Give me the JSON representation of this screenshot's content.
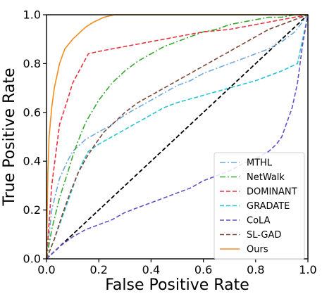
{
  "chart_data": {
    "type": "line",
    "title": "",
    "xlabel": "False Positive Rate",
    "ylabel": "True Positive Rate",
    "xlim": [
      0.0,
      1.0
    ],
    "ylim": [
      0.0,
      1.0
    ],
    "xticks": [
      "0.0",
      "0.2",
      "0.4",
      "0.6",
      "0.8",
      "1.0"
    ],
    "yticks": [
      "0.0",
      "0.2",
      "0.4",
      "0.6",
      "0.8",
      "1.0"
    ],
    "grid": false,
    "legend_position": "lower-right",
    "reference_line": {
      "x": [
        0.0,
        1.0
      ],
      "y": [
        0.0,
        1.0
      ],
      "color": "#000000",
      "style": "dashed"
    },
    "series": [
      {
        "name": "MTHL",
        "color": "#6fa9dc",
        "style": "dashdot",
        "x": [
          0.0,
          0.02,
          0.05,
          0.08,
          0.1,
          0.15,
          0.2,
          0.25,
          0.3,
          0.35,
          0.4,
          0.45,
          0.5,
          0.55,
          0.6,
          0.65,
          0.7,
          0.75,
          0.8,
          0.85,
          0.9,
          0.95,
          1.0
        ],
        "y": [
          0.0,
          0.2,
          0.33,
          0.4,
          0.44,
          0.49,
          0.52,
          0.55,
          0.59,
          0.62,
          0.65,
          0.68,
          0.71,
          0.73,
          0.76,
          0.78,
          0.8,
          0.82,
          0.84,
          0.86,
          0.89,
          0.93,
          1.0
        ]
      },
      {
        "name": "NetWalk",
        "color": "#3aa832",
        "style": "dashdot",
        "x": [
          0.0,
          0.02,
          0.05,
          0.08,
          0.1,
          0.12,
          0.15,
          0.2,
          0.25,
          0.3,
          0.35,
          0.4,
          0.45,
          0.5,
          0.55,
          0.6,
          0.65,
          0.7,
          0.75,
          0.8,
          0.85,
          0.9,
          0.95,
          1.0
        ],
        "y": [
          0.0,
          0.12,
          0.25,
          0.35,
          0.42,
          0.48,
          0.56,
          0.65,
          0.72,
          0.77,
          0.81,
          0.84,
          0.87,
          0.89,
          0.91,
          0.93,
          0.94,
          0.96,
          0.97,
          0.98,
          0.99,
          0.99,
          1.0,
          1.0
        ]
      },
      {
        "name": "DOMINANT",
        "color": "#e8333f",
        "style": "dashed",
        "x": [
          0.0,
          0.02,
          0.05,
          0.08,
          0.1,
          0.12,
          0.14,
          0.16,
          0.2,
          0.3,
          0.4,
          0.5,
          0.6,
          0.7,
          0.8,
          0.9,
          1.0
        ],
        "y": [
          0.0,
          0.3,
          0.55,
          0.65,
          0.72,
          0.76,
          0.8,
          0.84,
          0.85,
          0.87,
          0.89,
          0.91,
          0.93,
          0.94,
          0.96,
          0.98,
          1.0
        ]
      },
      {
        "name": "GRADATE",
        "color": "#27c5d4",
        "style": "dashed",
        "x": [
          0.0,
          0.03,
          0.06,
          0.09,
          0.12,
          0.14,
          0.16,
          0.2,
          0.25,
          0.3,
          0.35,
          0.4,
          0.45,
          0.5,
          0.6,
          0.7,
          0.8,
          0.9,
          0.96,
          0.98,
          1.0
        ],
        "y": [
          0.0,
          0.08,
          0.17,
          0.26,
          0.35,
          0.4,
          0.44,
          0.47,
          0.5,
          0.53,
          0.56,
          0.59,
          0.62,
          0.64,
          0.67,
          0.7,
          0.73,
          0.77,
          0.8,
          0.9,
          1.0
        ]
      },
      {
        "name": "CoLA",
        "color": "#6a4fc4",
        "style": "dashed",
        "x": [
          0.0,
          0.05,
          0.1,
          0.15,
          0.2,
          0.25,
          0.3,
          0.35,
          0.4,
          0.45,
          0.5,
          0.55,
          0.6,
          0.65,
          0.7,
          0.75,
          0.8,
          0.85,
          0.88,
          0.9,
          0.92,
          0.94,
          0.96,
          0.98,
          1.0
        ],
        "y": [
          0.0,
          0.05,
          0.09,
          0.12,
          0.14,
          0.16,
          0.19,
          0.21,
          0.23,
          0.25,
          0.27,
          0.29,
          0.32,
          0.34,
          0.36,
          0.39,
          0.41,
          0.44,
          0.47,
          0.5,
          0.56,
          0.62,
          0.72,
          0.88,
          1.0
        ]
      },
      {
        "name": "SL-GAD",
        "color": "#7b4a3a",
        "style": "dashed",
        "x": [
          0.0,
          0.03,
          0.06,
          0.09,
          0.12,
          0.15,
          0.18,
          0.22,
          0.26,
          0.3,
          0.35,
          0.4,
          0.45,
          0.5,
          0.55,
          0.6,
          0.65,
          0.7,
          0.75,
          0.8,
          0.85,
          0.9,
          0.95,
          1.0
        ],
        "y": [
          0.0,
          0.08,
          0.18,
          0.27,
          0.35,
          0.41,
          0.46,
          0.52,
          0.56,
          0.6,
          0.64,
          0.67,
          0.7,
          0.73,
          0.76,
          0.79,
          0.82,
          0.85,
          0.88,
          0.91,
          0.94,
          0.96,
          0.98,
          1.0
        ]
      },
      {
        "name": "Ours",
        "color": "#f28c1c",
        "style": "solid",
        "x": [
          0.0,
          0.005,
          0.01,
          0.02,
          0.03,
          0.05,
          0.07,
          0.1,
          0.12,
          0.15,
          0.18,
          0.22,
          0.26,
          0.3,
          0.4,
          0.5,
          0.6,
          0.7,
          0.8,
          0.9,
          1.0
        ],
        "y": [
          0.0,
          0.35,
          0.5,
          0.62,
          0.7,
          0.8,
          0.86,
          0.9,
          0.92,
          0.95,
          0.97,
          0.99,
          1.0,
          1.0,
          1.0,
          1.0,
          1.0,
          1.0,
          1.0,
          1.0,
          1.0
        ]
      }
    ]
  }
}
